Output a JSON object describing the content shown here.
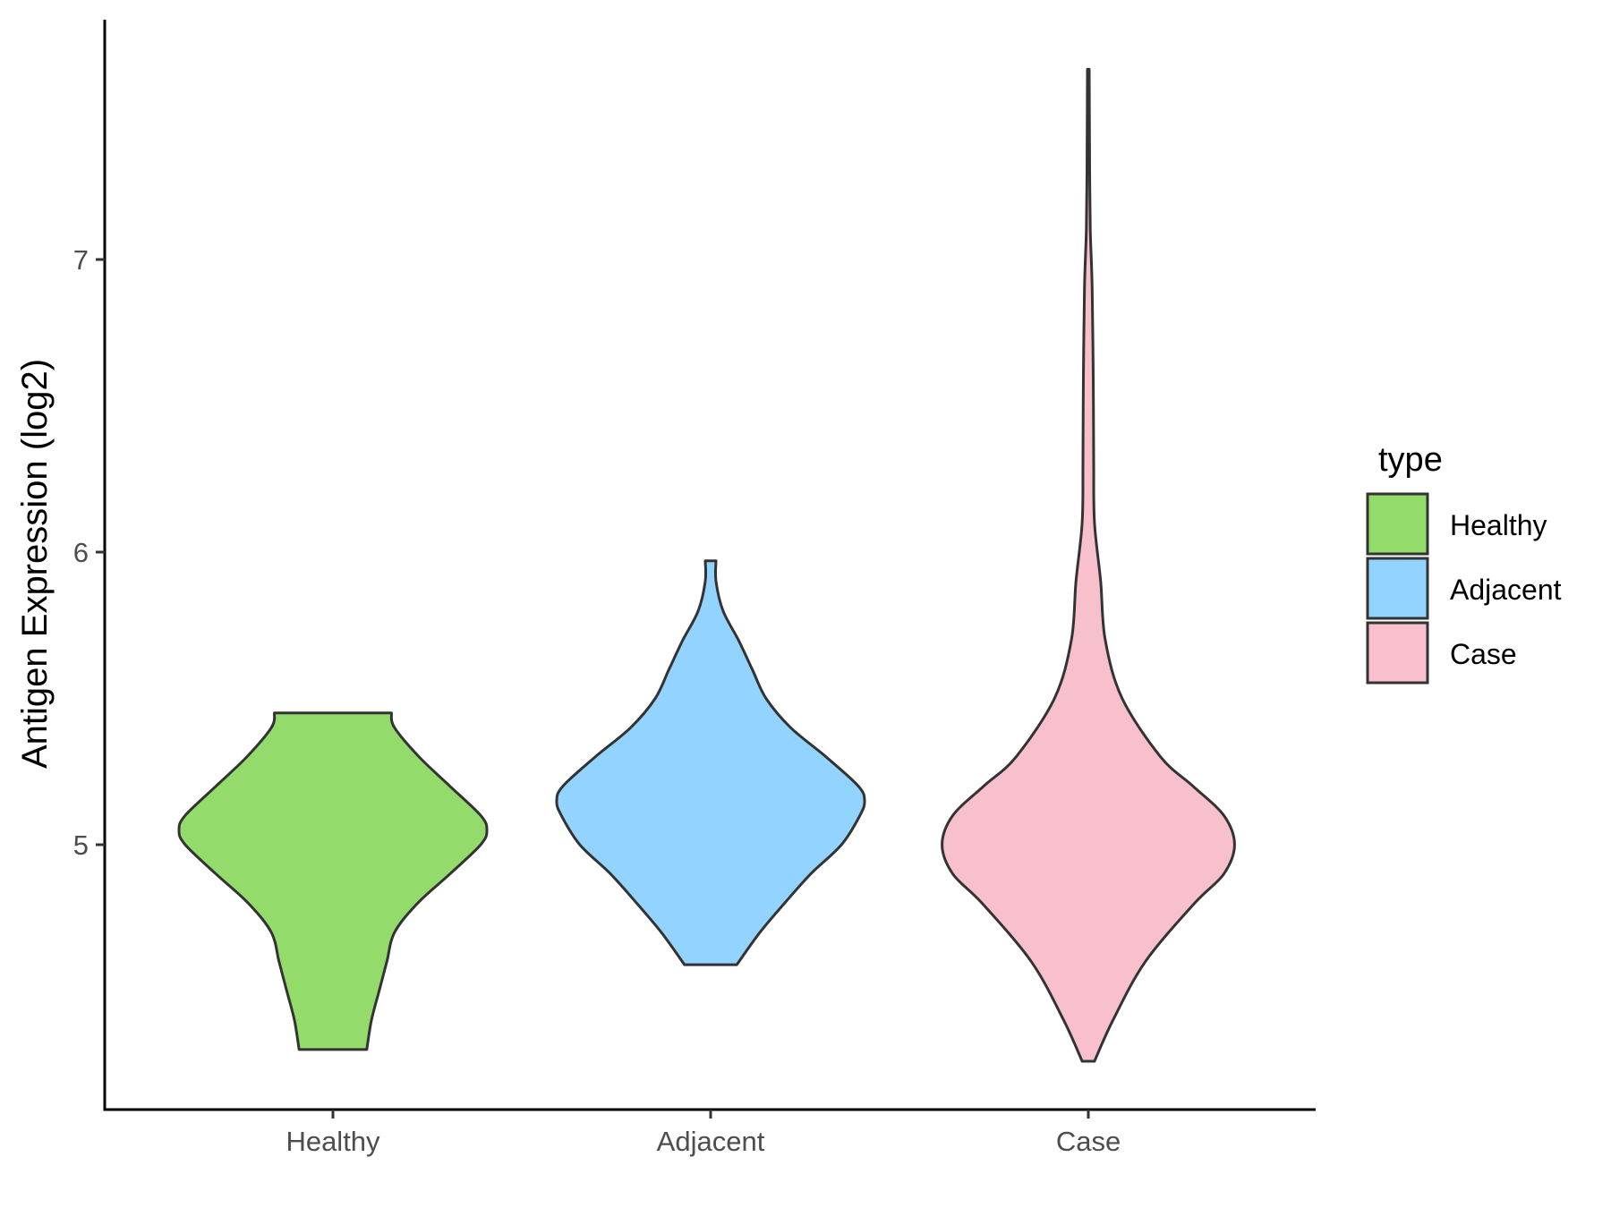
{
  "chart_data": {
    "type": "violin",
    "title": "",
    "xlabel": "",
    "ylabel": "Antigen Expression (log2)",
    "ylim": [
      4.19,
      7.9
    ],
    "yticks": [
      5,
      6,
      7
    ],
    "categories": [
      "Healthy",
      "Adjacent",
      "Case"
    ],
    "legend": {
      "title": "type",
      "position": "right",
      "entries": [
        "Healthy",
        "Adjacent",
        "Case"
      ]
    },
    "grid": false,
    "series": [
      {
        "category": "Healthy",
        "color": "#93DB6A",
        "min": 4.3,
        "max": 5.45,
        "profile": [
          [
            4.3,
            0.22
          ],
          [
            4.4,
            0.25
          ],
          [
            4.5,
            0.3
          ],
          [
            4.6,
            0.35
          ],
          [
            4.7,
            0.4
          ],
          [
            4.8,
            0.55
          ],
          [
            4.9,
            0.76
          ],
          [
            5.0,
            0.96
          ],
          [
            5.05,
            1.0
          ],
          [
            5.1,
            0.96
          ],
          [
            5.2,
            0.76
          ],
          [
            5.3,
            0.56
          ],
          [
            5.4,
            0.4
          ],
          [
            5.45,
            0.38
          ]
        ]
      },
      {
        "category": "Adjacent",
        "color": "#92D3FF",
        "min": 4.59,
        "max": 5.97,
        "profile": [
          [
            4.59,
            0.17
          ],
          [
            4.7,
            0.32
          ],
          [
            4.8,
            0.48
          ],
          [
            4.9,
            0.65
          ],
          [
            5.0,
            0.85
          ],
          [
            5.1,
            0.97
          ],
          [
            5.15,
            1.0
          ],
          [
            5.2,
            0.96
          ],
          [
            5.3,
            0.75
          ],
          [
            5.4,
            0.52
          ],
          [
            5.5,
            0.36
          ],
          [
            5.6,
            0.27
          ],
          [
            5.7,
            0.18
          ],
          [
            5.8,
            0.08
          ],
          [
            5.9,
            0.035
          ],
          [
            5.97,
            0.035
          ]
        ]
      },
      {
        "category": "Case",
        "color": "#F7C0CC",
        "min": 4.26,
        "max": 7.65,
        "profile": [
          [
            4.26,
            0.04
          ],
          [
            4.4,
            0.16
          ],
          [
            4.6,
            0.37
          ],
          [
            4.8,
            0.69
          ],
          [
            4.9,
            0.88
          ],
          [
            5.0,
            0.95
          ],
          [
            5.1,
            0.88
          ],
          [
            5.2,
            0.68
          ],
          [
            5.3,
            0.47
          ],
          [
            5.5,
            0.22
          ],
          [
            5.7,
            0.11
          ],
          [
            5.9,
            0.08
          ],
          [
            6.1,
            0.04
          ],
          [
            6.3,
            0.035
          ],
          [
            6.6,
            0.032
          ],
          [
            6.9,
            0.025
          ],
          [
            7.1,
            0.013
          ],
          [
            7.3,
            0.009
          ],
          [
            7.5,
            0.007
          ],
          [
            7.65,
            0.006
          ]
        ]
      }
    ]
  }
}
